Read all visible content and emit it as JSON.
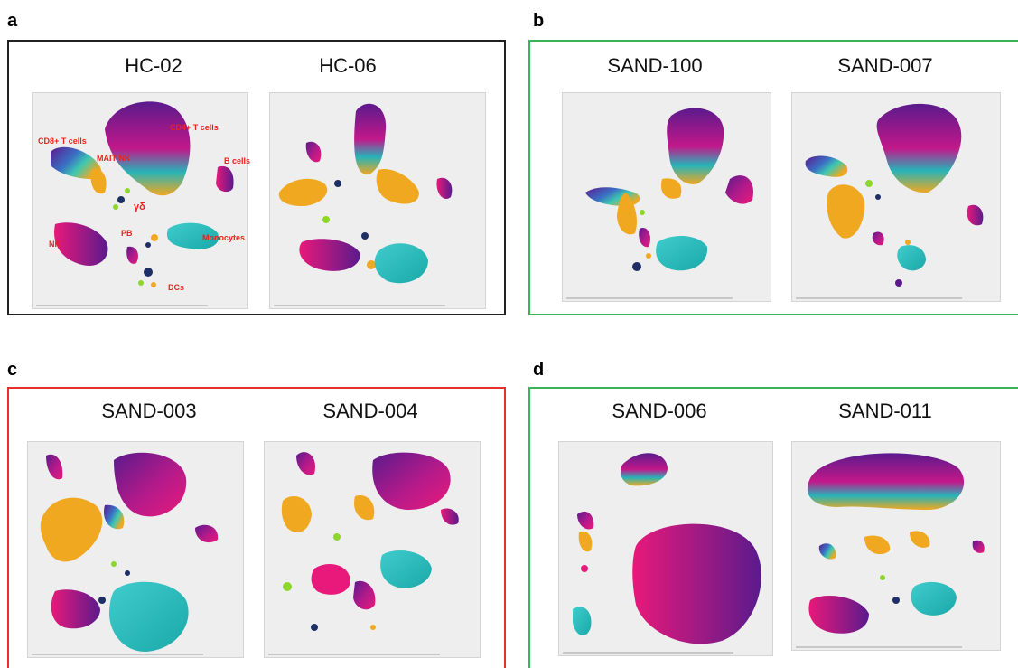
{
  "panels": [
    {
      "letter": "a",
      "titles": [
        "HC-02",
        "HC-06"
      ],
      "border": "#222222"
    },
    {
      "letter": "b",
      "titles": [
        "SAND-100",
        "SAND-007"
      ],
      "border": "#3cb55a"
    },
    {
      "letter": "c",
      "titles": [
        "SAND-003",
        "SAND-004"
      ],
      "border": "#e8302a"
    },
    {
      "letter": "d",
      "titles": [
        "SAND-006",
        "SAND-011"
      ],
      "border": "#3cb55a"
    }
  ],
  "cell_labels": {
    "cd8": "CD8+ T cells",
    "cd4": "CD4+ T cells",
    "mait": "MAIT NK",
    "b": "B cells",
    "gd": "γδ",
    "nk": "NK",
    "pb": "PB",
    "mono": "Monocytes",
    "dc": "DCs"
  },
  "colors": {
    "purple": "#5b1a8c",
    "magenta": "#d6187e",
    "orange": "#f0a820",
    "cyan": "#22b8b8",
    "green": "#8dd62a",
    "navy": "#1e2f66"
  }
}
